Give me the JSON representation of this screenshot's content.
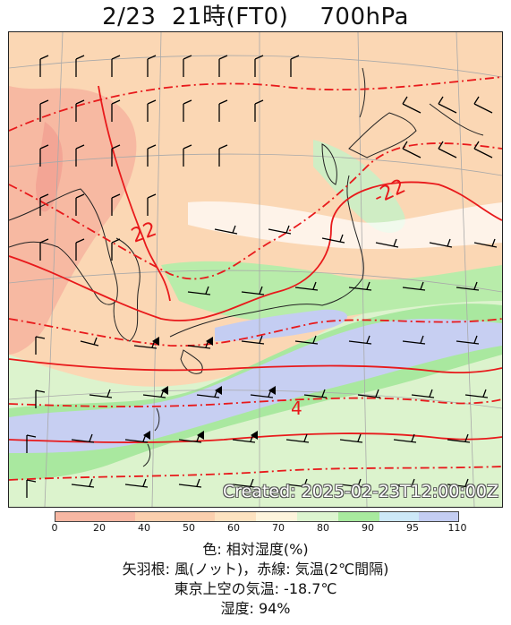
{
  "title": {
    "date": "2/23",
    "time": "21時(FT0)",
    "level": "700hPa"
  },
  "map": {
    "created_text": "Created: 2025-02-23T12:00:00Z",
    "contour_labels": [
      "22",
      "-22",
      "4"
    ],
    "colors": {
      "land_coast": "#222222",
      "isotherm": "#e8191b",
      "grid": "#a9a9a9"
    }
  },
  "colorbar": {
    "ticks": [
      "0",
      "20",
      "40",
      "50",
      "60",
      "70",
      "80",
      "90",
      "95",
      "110"
    ],
    "colors": [
      "#f7b7a3",
      "#fbcfae",
      "#fde2c0",
      "#fef4dc",
      "#ddf5d0",
      "#a8ea9e",
      "#cde8f8",
      "#c4cdf2"
    ]
  },
  "legend": {
    "line1": "色: 相対湿度(%)",
    "line2": "矢羽根: 風(ノット)，赤線: 気温(2℃間隔)",
    "line3": "東京上空の気温: -18.7℃",
    "line4": "湿度: 94%"
  }
}
